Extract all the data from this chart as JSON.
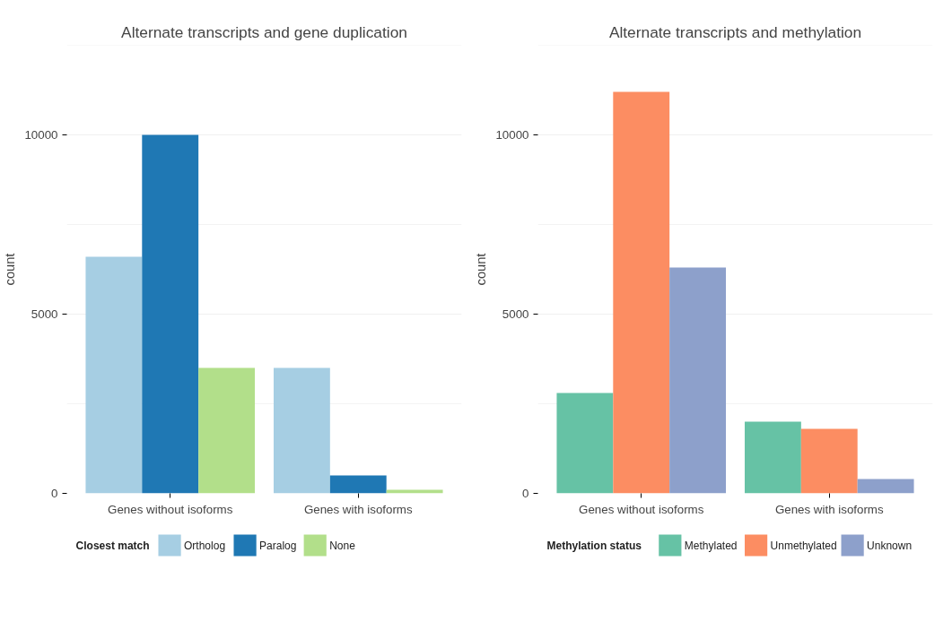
{
  "chart_data": [
    {
      "type": "bar",
      "title": "Alternate transcripts and gene duplication",
      "ylabel": "count",
      "legend_title": "Closest match",
      "categories": [
        "Genes without isoforms",
        "Genes with isoforms"
      ],
      "series": [
        {
          "name": "Ortholog",
          "color": "#a6cee3",
          "values": [
            6600,
            3500
          ]
        },
        {
          "name": "Paralog",
          "color": "#1f78b4",
          "values": [
            10000,
            500
          ]
        },
        {
          "name": "None",
          "color": "#b2df8a",
          "values": [
            3500,
            100
          ]
        }
      ],
      "ylim": [
        0,
        12500
      ],
      "yticks": [
        0,
        {
          "value": 2500,
          "label": null
        },
        5000,
        {
          "value": 7500,
          "label": null
        },
        10000,
        {
          "value": 12500,
          "label": null
        }
      ],
      "grid": "y",
      "legend": "bottom"
    },
    {
      "type": "bar",
      "title": "Alternate transcripts and methylation",
      "ylabel": "count",
      "legend_title": "Methylation status",
      "categories": [
        "Genes without isoforms",
        "Genes with isoforms"
      ],
      "series": [
        {
          "name": "Methylated",
          "color": "#66c2a5",
          "values": [
            2800,
            2000
          ]
        },
        {
          "name": "Unmethylated",
          "color": "#fc8d62",
          "values": [
            11200,
            1800
          ]
        },
        {
          "name": "Unknown",
          "color": "#8da0cb",
          "values": [
            6300,
            400
          ]
        }
      ],
      "ylim": [
        0,
        12500
      ],
      "yticks": [
        0,
        {
          "value": 2500,
          "label": null
        },
        5000,
        {
          "value": 7500,
          "label": null
        },
        10000,
        {
          "value": 12500,
          "label": null
        }
      ],
      "grid": "y",
      "legend": "bottom"
    }
  ]
}
